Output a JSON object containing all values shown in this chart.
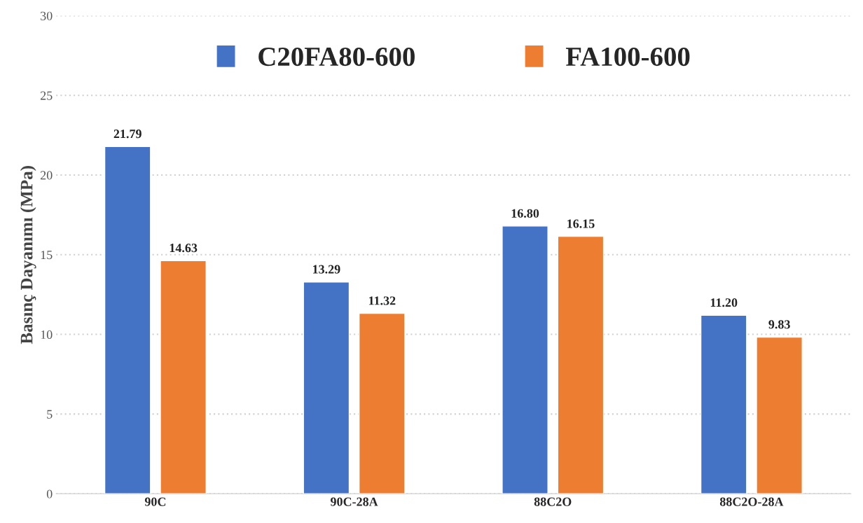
{
  "chart_data": {
    "type": "bar",
    "ylabel": "Basınç Dayanımı (MPa)",
    "categories": [
      "90C",
      "90C-28A",
      "88C2O",
      "88C2O-28A"
    ],
    "series": [
      {
        "name": "C20FA80-600",
        "color": "#4472c4",
        "values": [
          21.79,
          13.29,
          16.8,
          11.2
        ],
        "value_labels": [
          "21.79",
          "13.29",
          "16.80",
          "11.20"
        ]
      },
      {
        "name": "FA100-600",
        "color": "#ed7d31",
        "values": [
          14.63,
          11.32,
          16.15,
          9.83
        ],
        "value_labels": [
          "14.63",
          "11.32",
          "16.15",
          "9.83"
        ]
      }
    ],
    "ylim": [
      0,
      30
    ],
    "yticks": [
      0,
      5,
      10,
      15,
      20,
      25,
      30
    ],
    "grid": "y",
    "legend": "top"
  }
}
